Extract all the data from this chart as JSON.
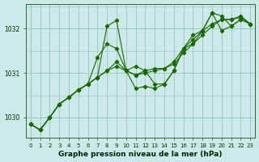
{
  "xlabel": "Graphe pression niveau de la mer (hPa)",
  "background_color": "#cde8e8",
  "grid_color": "#99ccbb",
  "line_color": "#1a6600",
  "ylim": [
    1029.55,
    1032.55
  ],
  "xlim": [
    -0.5,
    23.5
  ],
  "yticks": [
    1030,
    1031,
    1032
  ],
  "xticks": [
    0,
    1,
    2,
    3,
    4,
    5,
    6,
    7,
    8,
    9,
    10,
    11,
    12,
    13,
    14,
    15,
    16,
    17,
    18,
    19,
    20,
    21,
    22,
    23
  ],
  "series": [
    [
      1029.85,
      1029.72,
      1030.0,
      1030.3,
      1030.45,
      1030.62,
      1030.75,
      1030.9,
      1032.05,
      1032.18,
      1031.05,
      1031.15,
      1031.05,
      1030.75,
      1030.75,
      1031.05,
      1031.55,
      1031.85,
      1031.95,
      1032.35,
      1032.28,
      1032.05,
      1032.2,
      1032.1
    ],
    [
      1029.85,
      1029.72,
      1030.0,
      1030.3,
      1030.45,
      1030.62,
      1030.75,
      1031.35,
      1031.65,
      1031.55,
      1031.05,
      1030.65,
      1030.7,
      1030.65,
      1030.75,
      1031.05,
      1031.55,
      1031.65,
      1031.95,
      1032.35,
      1031.95,
      1032.05,
      1032.2,
      1032.1
    ],
    [
      1029.85,
      1029.72,
      1030.0,
      1030.3,
      1030.45,
      1030.62,
      1030.75,
      1030.9,
      1031.05,
      1031.15,
      1031.05,
      1030.95,
      1031.0,
      1031.05,
      1031.1,
      1031.2,
      1031.45,
      1031.65,
      1031.85,
      1032.05,
      1032.2,
      1032.2,
      1032.25,
      1032.1
    ],
    [
      1029.85,
      1029.72,
      1030.0,
      1030.3,
      1030.45,
      1030.62,
      1030.75,
      1030.9,
      1031.05,
      1031.25,
      1031.05,
      1030.95,
      1031.05,
      1031.1,
      1031.1,
      1031.25,
      1031.55,
      1031.75,
      1031.95,
      1032.1,
      1032.2,
      1032.2,
      1032.28,
      1032.1
    ]
  ]
}
